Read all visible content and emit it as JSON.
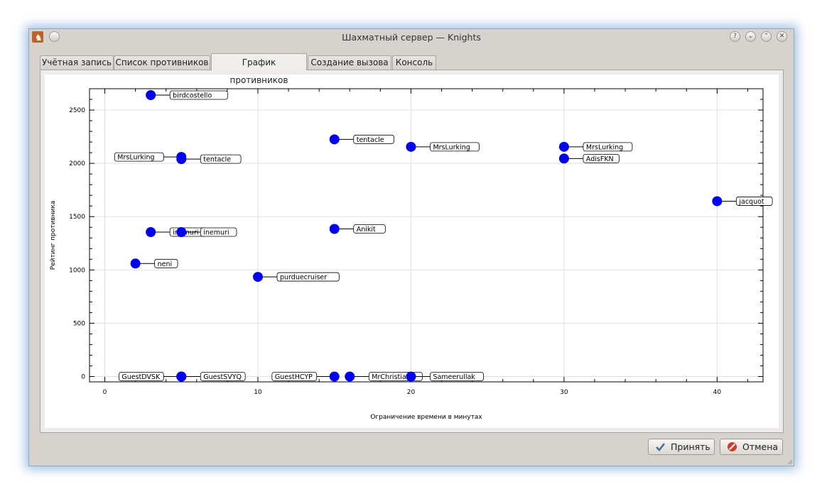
{
  "window": {
    "title": "Шахматный сервер — Knights",
    "help_button": "?"
  },
  "tabs": [
    {
      "label": "Учётная запись",
      "active": false
    },
    {
      "label": "Список противников",
      "active": false
    },
    {
      "label": "График противников",
      "active": true
    },
    {
      "label": "Создание вызова",
      "active": false
    },
    {
      "label": "Консоль",
      "active": false
    }
  ],
  "buttons": {
    "accept": "Принять",
    "cancel": "Отмена"
  },
  "colors": {
    "point": "#0000ee",
    "accent_cancel": "#d43a2a",
    "accent_accept": "#4a6ea0"
  },
  "chart_data": {
    "type": "scatter",
    "xlabel": "Ограничение времени в минутах",
    "ylabel": "Рейтинг противника",
    "xlim": [
      -1,
      43
    ],
    "ylim": [
      -50,
      2700
    ],
    "x_ticks": [
      0,
      10,
      20,
      30,
      40
    ],
    "y_ticks": [
      0,
      500,
      1000,
      1500,
      2000,
      2500
    ],
    "grid": true,
    "points": [
      {
        "x": 3,
        "y": 2640,
        "label": "birdcostello",
        "side": "right"
      },
      {
        "x": 5,
        "y": 2060,
        "label": "MrsLurking",
        "side": "left"
      },
      {
        "x": 5,
        "y": 2040,
        "label": "tentacle",
        "side": "right"
      },
      {
        "x": 15,
        "y": 2225,
        "label": "tentacle",
        "side": "right"
      },
      {
        "x": 20,
        "y": 2155,
        "label": "MrsLurking",
        "side": "right"
      },
      {
        "x": 30,
        "y": 2155,
        "label": "MrsLurking",
        "side": "right"
      },
      {
        "x": 30,
        "y": 2045,
        "label": "AdisFKN",
        "side": "right"
      },
      {
        "x": 40,
        "y": 1645,
        "label": "jacquot",
        "side": "right"
      },
      {
        "x": 3,
        "y": 1355,
        "label": "inemuri",
        "side": "right"
      },
      {
        "x": 5,
        "y": 1355,
        "label": "inemuri",
        "side": "right"
      },
      {
        "x": 15,
        "y": 1385,
        "label": "Anikit",
        "side": "right"
      },
      {
        "x": 2,
        "y": 1060,
        "label": "neni",
        "side": "right"
      },
      {
        "x": 10,
        "y": 935,
        "label": "purduecruiser",
        "side": "right"
      },
      {
        "x": 5,
        "y": 0,
        "label": "GuestDVSK",
        "side": "left"
      },
      {
        "x": 5,
        "y": 0,
        "label": "GuestSVYQ",
        "side": "right"
      },
      {
        "x": 15,
        "y": 0,
        "label": "GuestHCYP",
        "side": "left"
      },
      {
        "x": 16,
        "y": 0,
        "label": "MrChristian",
        "side": "right"
      },
      {
        "x": 20,
        "y": 0,
        "label": "Sameerullak",
        "side": "right"
      }
    ]
  }
}
